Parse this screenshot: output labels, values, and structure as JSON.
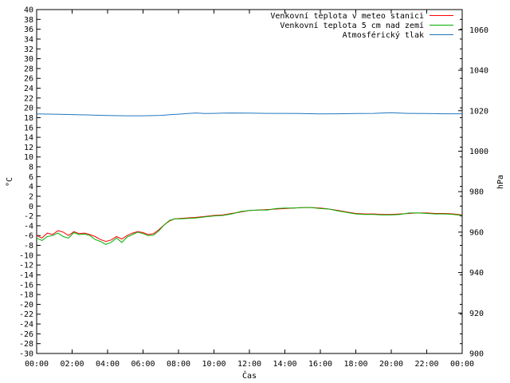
{
  "chart_data": {
    "type": "line",
    "title": "",
    "xlabel": "Čas",
    "ylabel_left": "°C",
    "ylabel_right": "hPa",
    "ylim_left": [
      -30,
      40
    ],
    "ylim_right": [
      900,
      1070
    ],
    "xlim": [
      0,
      24
    ],
    "y_ticks_left": [
      "40",
      "38",
      "36",
      "34",
      "32",
      "30",
      "28",
      "26",
      "24",
      "22",
      "20",
      "18",
      "16",
      "14",
      "12",
      "10",
      "8",
      "6",
      "4",
      "2",
      "0",
      "-2",
      "-4",
      "-6",
      "-8",
      "-10",
      "-12",
      "-14",
      "-16",
      "-18",
      "-20",
      "-22",
      "-24",
      "-26",
      "-28",
      "-30"
    ],
    "y_ticks_right": [
      "1060",
      "1040",
      "1020",
      "1000",
      "980",
      "960",
      "940",
      "920",
      "900"
    ],
    "x_ticks": [
      "00:00",
      "02:00",
      "04:00",
      "06:00",
      "08:00",
      "10:00",
      "12:00",
      "14:00",
      "16:00",
      "18:00",
      "20:00",
      "22:00",
      "00:00"
    ],
    "legend_position": "top-right",
    "grid": false,
    "series": [
      {
        "name": "Venkovní teplota v meteo stanici",
        "color": "#ff0000",
        "axis": "left",
        "x": [
          0,
          0.3,
          0.6,
          0.9,
          1.2,
          1.5,
          1.8,
          2.1,
          2.4,
          2.7,
          3.0,
          3.3,
          3.6,
          3.9,
          4.2,
          4.5,
          4.8,
          5.1,
          5.4,
          5.7,
          6.0,
          6.3,
          6.6,
          6.9,
          7.2,
          7.5,
          7.8,
          8.1,
          8.5,
          9,
          9.5,
          10,
          10.5,
          11,
          11.5,
          12,
          12.5,
          13,
          13.5,
          14,
          14.5,
          15,
          15.5,
          16,
          16.5,
          17,
          17.5,
          18,
          18.5,
          19,
          19.5,
          20,
          20.5,
          21,
          21.5,
          22,
          22.5,
          23,
          23.5,
          24
        ],
        "y": [
          -6.0,
          -6.5,
          -5.5,
          -5.8,
          -5.0,
          -5.3,
          -6.0,
          -5.2,
          -5.6,
          -5.5,
          -5.8,
          -6.2,
          -6.8,
          -7.2,
          -6.9,
          -6.2,
          -6.7,
          -6.0,
          -5.5,
          -5.2,
          -5.4,
          -5.8,
          -5.6,
          -4.8,
          -3.8,
          -3.0,
          -2.6,
          -2.5,
          -2.4,
          -2.3,
          -2.1,
          -1.9,
          -1.8,
          -1.5,
          -1.2,
          -0.9,
          -0.8,
          -0.7,
          -0.6,
          -0.5,
          -0.4,
          -0.3,
          -0.3,
          -0.4,
          -0.6,
          -0.9,
          -1.2,
          -1.5,
          -1.6,
          -1.6,
          -1.7,
          -1.7,
          -1.6,
          -1.5,
          -1.4,
          -1.4,
          -1.5,
          -1.5,
          -1.6,
          -1.8
        ]
      },
      {
        "name": "Venkovní teplota 5 cm nad zemí",
        "color": "#00b000",
        "axis": "left",
        "x": [
          0,
          0.3,
          0.6,
          0.9,
          1.2,
          1.5,
          1.8,
          2.1,
          2.4,
          2.7,
          3.0,
          3.3,
          3.6,
          3.9,
          4.2,
          4.5,
          4.8,
          5.1,
          5.4,
          5.7,
          6.0,
          6.3,
          6.6,
          6.9,
          7.2,
          7.5,
          7.8,
          8.1,
          8.5,
          9,
          9.5,
          10,
          10.5,
          11,
          11.5,
          12,
          12.5,
          13,
          13.5,
          14,
          14.5,
          15,
          15.5,
          16,
          16.5,
          17,
          17.5,
          18,
          18.5,
          19,
          19.5,
          20,
          20.5,
          21,
          21.5,
          22,
          22.5,
          23,
          23.5,
          24
        ],
        "y": [
          -6.5,
          -7.0,
          -6.2,
          -6.0,
          -5.5,
          -6.2,
          -6.5,
          -5.4,
          -5.8,
          -5.7,
          -6.0,
          -6.8,
          -7.2,
          -7.8,
          -7.4,
          -6.5,
          -7.4,
          -6.3,
          -5.8,
          -5.3,
          -5.6,
          -6.0,
          -5.9,
          -5.0,
          -3.8,
          -2.9,
          -2.6,
          -2.6,
          -2.5,
          -2.4,
          -2.2,
          -2.0,
          -1.9,
          -1.6,
          -1.1,
          -0.9,
          -0.8,
          -0.8,
          -0.5,
          -0.4,
          -0.4,
          -0.3,
          -0.3,
          -0.5,
          -0.6,
          -1.0,
          -1.3,
          -1.6,
          -1.7,
          -1.7,
          -1.8,
          -1.8,
          -1.7,
          -1.4,
          -1.4,
          -1.5,
          -1.6,
          -1.6,
          -1.7,
          -1.9
        ]
      },
      {
        "name": "Atmosférický tlak",
        "color": "#1f77c0",
        "axis": "right",
        "x": [
          0,
          1,
          2,
          3,
          4,
          5,
          6,
          7,
          7.5,
          8,
          8.5,
          9,
          9.5,
          10,
          10.5,
          11,
          12,
          13,
          14,
          15,
          16,
          17,
          18,
          19,
          19.5,
          20,
          20.5,
          21,
          22,
          23,
          24
        ],
        "y": [
          1018.4,
          1018.3,
          1018.1,
          1017.9,
          1017.6,
          1017.5,
          1017.5,
          1017.7,
          1018.0,
          1018.3,
          1018.6,
          1018.9,
          1018.6,
          1018.7,
          1018.8,
          1018.9,
          1018.8,
          1018.7,
          1018.7,
          1018.6,
          1018.4,
          1018.5,
          1018.6,
          1018.7,
          1018.9,
          1019.0,
          1018.8,
          1018.7,
          1018.6,
          1018.5,
          1018.5
        ]
      }
    ]
  }
}
